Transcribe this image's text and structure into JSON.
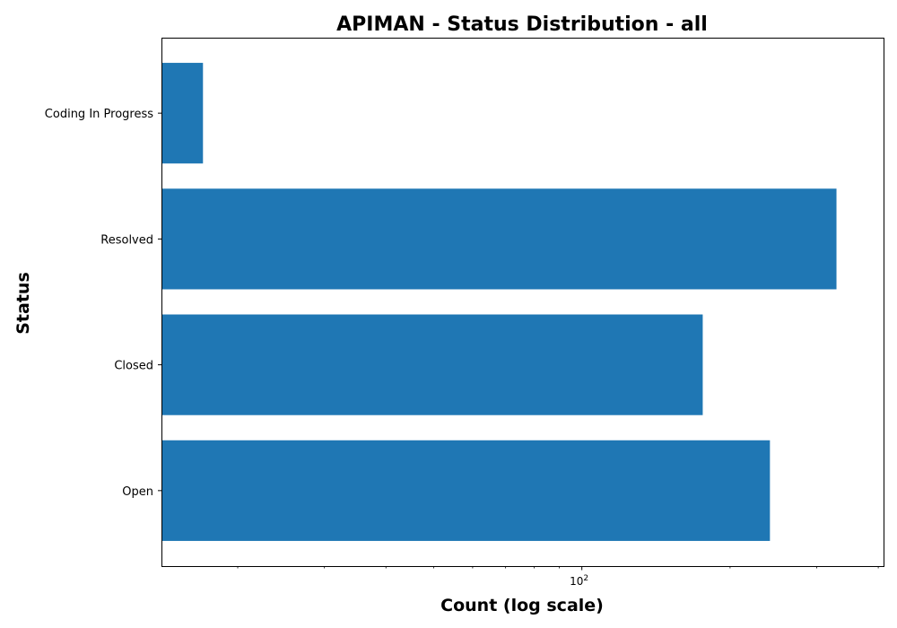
{
  "chart_data": {
    "type": "bar",
    "orientation": "horizontal",
    "title": "APIMAN - Status Distribution - all",
    "xlabel": "Count (log scale)",
    "ylabel": "Status",
    "x_scale": "log",
    "categories": [
      "Open",
      "Closed",
      "Resolved",
      "Coding In Progress"
    ],
    "values": [
      241,
      176,
      329,
      17
    ],
    "xlim": [
      14,
      410
    ],
    "major_tick_value": 100,
    "major_tick_label": "10^2",
    "bar_color": "#1f77b4",
    "grid": false,
    "legend": "none"
  }
}
